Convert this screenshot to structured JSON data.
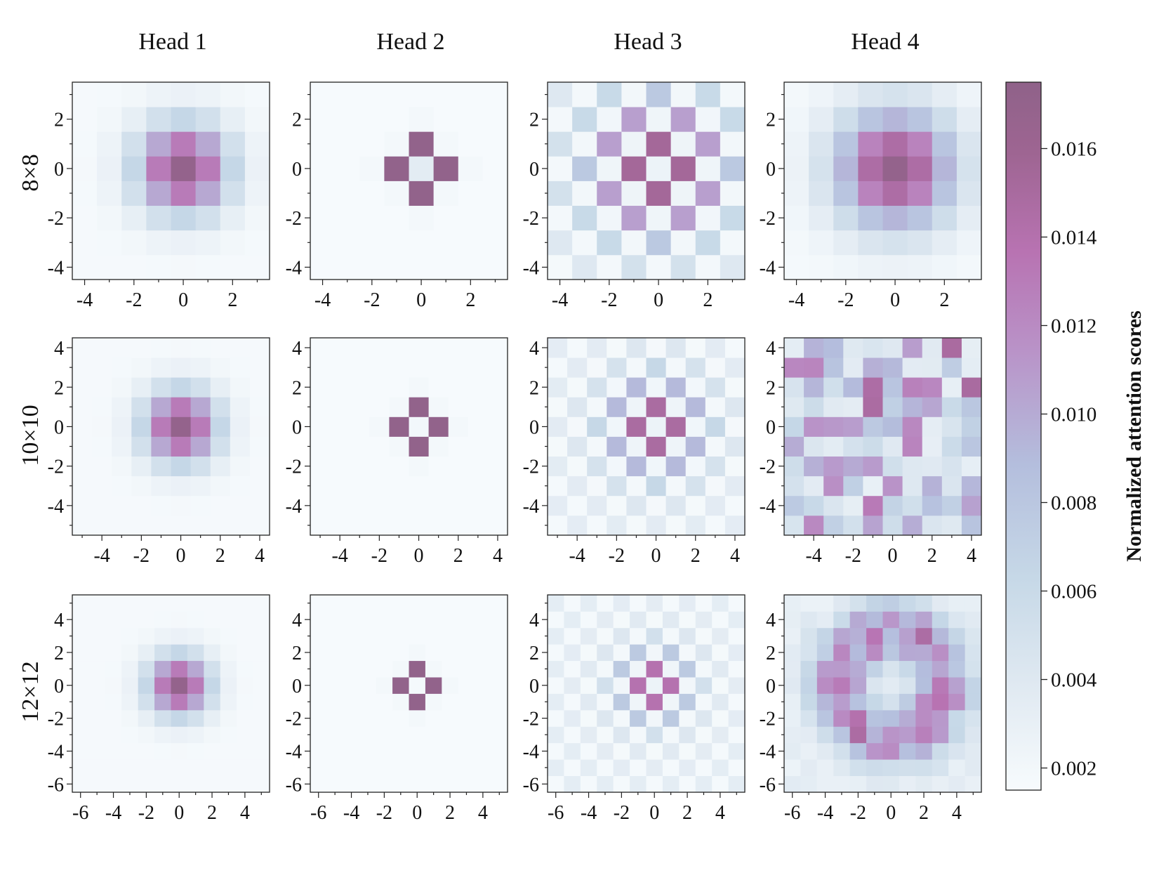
{
  "figure": {
    "column_titles": [
      "Head 1",
      "Head 2",
      "Head 3",
      "Head 4"
    ],
    "row_titles": [
      "8×8",
      "10×10",
      "12×12"
    ]
  },
  "colorbar": {
    "label": "Normalized attention scores",
    "vmin": 0.0015,
    "vmax": 0.0175,
    "ticks": [
      0.002,
      0.004,
      0.006,
      0.008,
      0.01,
      0.012,
      0.014,
      0.016
    ],
    "tick_labels": [
      "0.002",
      "0.004",
      "0.006",
      "0.008",
      "0.010",
      "0.012",
      "0.014",
      "0.016"
    ],
    "colormap": [
      "#f7fbfd",
      "#e1eaf2",
      "#c6d8e7",
      "#b4bedd",
      "#b993c8",
      "#b873b2",
      "#9e6592",
      "#8f6289"
    ]
  },
  "chart_data": [
    {
      "type": "heatmap",
      "head": "Head 1",
      "grid": "8×8",
      "x": [
        -4,
        -3,
        -2,
        -1,
        0,
        1,
        2,
        3
      ],
      "y": [
        -4,
        -3,
        -2,
        -1,
        0,
        1,
        2,
        3
      ],
      "xlim": [
        -4.5,
        3.5
      ],
      "ylim": [
        -4.5,
        3.5
      ],
      "xticks": [
        -4,
        -2,
        0,
        2
      ],
      "yticks": [
        -4,
        -2,
        0,
        2
      ],
      "profile": "gaussian",
      "peak": 0.017,
      "sigma": 1.3
    },
    {
      "type": "heatmap",
      "head": "Head 2",
      "grid": "8×8",
      "x": [
        -4,
        -3,
        -2,
        -1,
        0,
        1,
        2,
        3
      ],
      "y": [
        -4,
        -3,
        -2,
        -1,
        0,
        1,
        2,
        3
      ],
      "xlim": [
        -4.5,
        3.5
      ],
      "ylim": [
        -4.5,
        3.5
      ],
      "xticks": [
        -4,
        -2,
        0,
        2
      ],
      "yticks": [
        -4,
        -2,
        0,
        2
      ],
      "profile": "cross",
      "cross_value": 0.0172,
      "center_value": 0.0035
    },
    {
      "type": "heatmap",
      "head": "Head 3",
      "grid": "8×8",
      "x": [
        -4,
        -3,
        -2,
        -1,
        0,
        1,
        2,
        3
      ],
      "y": [
        -4,
        -3,
        -2,
        -1,
        0,
        1,
        2,
        3
      ],
      "xlim": [
        -4.5,
        3.5
      ],
      "ylim": [
        -4.5,
        3.5
      ],
      "xticks": [
        -4,
        -2,
        0,
        2
      ],
      "yticks": [
        -4,
        -2,
        0,
        2
      ],
      "profile": "checker",
      "peak": 0.017,
      "sigma": 2.0
    },
    {
      "type": "heatmap",
      "head": "Head 4",
      "grid": "8×8",
      "x": [
        -4,
        -3,
        -2,
        -1,
        0,
        1,
        2,
        3
      ],
      "y": [
        -4,
        -3,
        -2,
        -1,
        0,
        1,
        2,
        3
      ],
      "xlim": [
        -4.5,
        3.5
      ],
      "ylim": [
        -4.5,
        3.5
      ],
      "xticks": [
        -4,
        -2,
        0,
        2
      ],
      "yticks": [
        -4,
        -2,
        0,
        2
      ],
      "profile": "gaussian",
      "peak": 0.017,
      "sigma": 1.7
    },
    {
      "type": "heatmap",
      "head": "Head 1",
      "grid": "10×10",
      "x": [
        -5,
        -4,
        -3,
        -2,
        -1,
        0,
        1,
        2,
        3,
        4
      ],
      "y": [
        -5,
        -4,
        -3,
        -2,
        -1,
        0,
        1,
        2,
        3,
        4
      ],
      "xlim": [
        -5.5,
        4.5
      ],
      "ylim": [
        -5.5,
        4.5
      ],
      "xticks": [
        -4,
        -2,
        0,
        2,
        4
      ],
      "yticks": [
        -4,
        -2,
        0,
        2,
        4
      ],
      "profile": "gaussian",
      "peak": 0.017,
      "sigma": 1.3
    },
    {
      "type": "heatmap",
      "head": "Head 2",
      "grid": "10×10",
      "x": [
        -5,
        -4,
        -3,
        -2,
        -1,
        0,
        1,
        2,
        3,
        4
      ],
      "y": [
        -5,
        -4,
        -3,
        -2,
        -1,
        0,
        1,
        2,
        3,
        4
      ],
      "xlim": [
        -5.5,
        4.5
      ],
      "ylim": [
        -5.5,
        4.5
      ],
      "xticks": [
        -4,
        -2,
        0,
        2,
        4
      ],
      "yticks": [
        -4,
        -2,
        0,
        2,
        4
      ],
      "profile": "cross",
      "cross_value": 0.0172,
      "center_value": 0.002
    },
    {
      "type": "heatmap",
      "head": "Head 3",
      "grid": "10×10",
      "x": [
        -5,
        -4,
        -3,
        -2,
        -1,
        0,
        1,
        2,
        3,
        4
      ],
      "y": [
        -5,
        -4,
        -3,
        -2,
        -1,
        0,
        1,
        2,
        3,
        4
      ],
      "xlim": [
        -5.5,
        4.5
      ],
      "ylim": [
        -5.5,
        4.5
      ],
      "xticks": [
        -4,
        -2,
        0,
        2,
        4
      ],
      "yticks": [
        -4,
        -2,
        0,
        2,
        4
      ],
      "profile": "checker",
      "peak": 0.017,
      "sigma": 1.7
    },
    {
      "type": "heatmap",
      "head": "Head 4",
      "grid": "10×10",
      "x": [
        -5,
        -4,
        -3,
        -2,
        -1,
        0,
        1,
        2,
        3,
        4
      ],
      "y": [
        -5,
        -4,
        -3,
        -2,
        -1,
        0,
        1,
        2,
        3,
        4
      ],
      "xlim": [
        -5.5,
        4.5
      ],
      "ylim": [
        -5.5,
        4.5
      ],
      "xticks": [
        -4,
        -2,
        0,
        2,
        4
      ],
      "yticks": [
        -4,
        -2,
        0,
        2,
        4
      ],
      "profile": "random",
      "seed": 17,
      "low": 0.003,
      "high": 0.015
    },
    {
      "type": "heatmap",
      "head": "Head 1",
      "grid": "12×12",
      "x": [
        -6,
        -5,
        -4,
        -3,
        -2,
        -1,
        0,
        1,
        2,
        3,
        4,
        5
      ],
      "y": [
        -6,
        -5,
        -4,
        -3,
        -2,
        -1,
        0,
        1,
        2,
        3,
        4,
        5
      ],
      "xlim": [
        -6.5,
        5.5
      ],
      "ylim": [
        -6.5,
        5.5
      ],
      "xticks": [
        -6,
        -4,
        -2,
        0,
        2,
        4
      ],
      "yticks": [
        -6,
        -4,
        -2,
        0,
        2,
        4
      ],
      "profile": "gaussian",
      "peak": 0.017,
      "sigma": 1.3
    },
    {
      "type": "heatmap",
      "head": "Head 2",
      "grid": "12×12",
      "x": [
        -6,
        -5,
        -4,
        -3,
        -2,
        -1,
        0,
        1,
        2,
        3,
        4,
        5
      ],
      "y": [
        -6,
        -5,
        -4,
        -3,
        -2,
        -1,
        0,
        1,
        2,
        3,
        4,
        5
      ],
      "xlim": [
        -6.5,
        5.5
      ],
      "ylim": [
        -6.5,
        5.5
      ],
      "xticks": [
        -6,
        -4,
        -2,
        0,
        2,
        4
      ],
      "yticks": [
        -6,
        -4,
        -2,
        0,
        2,
        4
      ],
      "profile": "cross",
      "cross_value": 0.0172,
      "center_value": 0.0018
    },
    {
      "type": "heatmap",
      "head": "Head 3",
      "grid": "12×12",
      "x": [
        -6,
        -5,
        -4,
        -3,
        -2,
        -1,
        0,
        1,
        2,
        3,
        4,
        5
      ],
      "y": [
        -6,
        -5,
        -4,
        -3,
        -2,
        -1,
        0,
        1,
        2,
        3,
        4,
        5
      ],
      "xlim": [
        -6.5,
        5.5
      ],
      "ylim": [
        -6.5,
        5.5
      ],
      "xticks": [
        -6,
        -4,
        -2,
        0,
        2,
        4
      ],
      "yticks": [
        -6,
        -4,
        -2,
        0,
        2,
        4
      ],
      "profile": "checker",
      "peak": 0.0165,
      "sigma": 1.5
    },
    {
      "type": "heatmap",
      "head": "Head 4",
      "grid": "12×12",
      "x": [
        -6,
        -5,
        -4,
        -3,
        -2,
        -1,
        0,
        1,
        2,
        3,
        4,
        5
      ],
      "y": [
        -6,
        -5,
        -4,
        -3,
        -2,
        -1,
        0,
        1,
        2,
        3,
        4,
        5
      ],
      "xlim": [
        -6.5,
        5.5
      ],
      "ylim": [
        -6.5,
        5.5
      ],
      "xticks": [
        -6,
        -4,
        -2,
        0,
        2,
        4
      ],
      "yticks": [
        -6,
        -4,
        -2,
        0,
        2,
        4
      ],
      "profile": "ring",
      "seed": 29,
      "low": 0.004,
      "high": 0.013
    }
  ]
}
